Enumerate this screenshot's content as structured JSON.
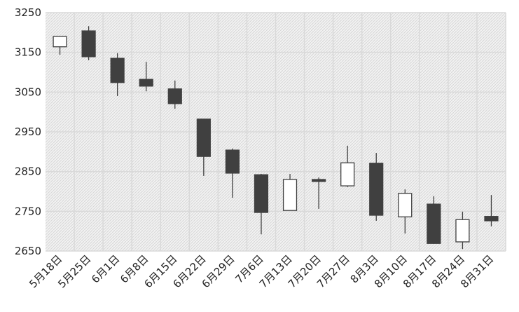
{
  "chart_data": {
    "type": "candlestick",
    "categories": [
      "5月18日",
      "5月25日",
      "6月1日",
      "6月8日",
      "6月15日",
      "6月22日",
      "6月29日",
      "7月6日",
      "7月13日",
      "7月20日",
      "7月27日",
      "8月3日",
      "8月10日",
      "8月17日",
      "8月24日",
      "8月31日"
    ],
    "open": [
      3164,
      3204,
      3135,
      3082,
      3058,
      2982,
      2904,
      2842,
      2752,
      2830,
      2814,
      2871,
      2736,
      2768,
      2673,
      2737
    ],
    "high": [
      3190,
      3216,
      3148,
      3126,
      3079,
      2982,
      2908,
      2844,
      2844,
      2835,
      2915,
      2897,
      2805,
      2788,
      2749,
      2791
    ],
    "low": [
      3144,
      3130,
      3040,
      3052,
      3008,
      2839,
      2784,
      2692,
      2752,
      2756,
      2811,
      2726,
      2694,
      2668,
      2655,
      2712
    ],
    "close": [
      3190,
      3139,
      3074,
      3065,
      3021,
      2888,
      2846,
      2747,
      2830,
      2825,
      2872,
      2740,
      2795,
      2669,
      2729,
      2726
    ],
    "up_color": "#ffffff",
    "down_color": "#404040",
    "ylim": [
      2650,
      3250
    ],
    "yticks": [
      2650,
      2750,
      2850,
      2950,
      3050,
      3150,
      3250
    ],
    "grid": true
  }
}
